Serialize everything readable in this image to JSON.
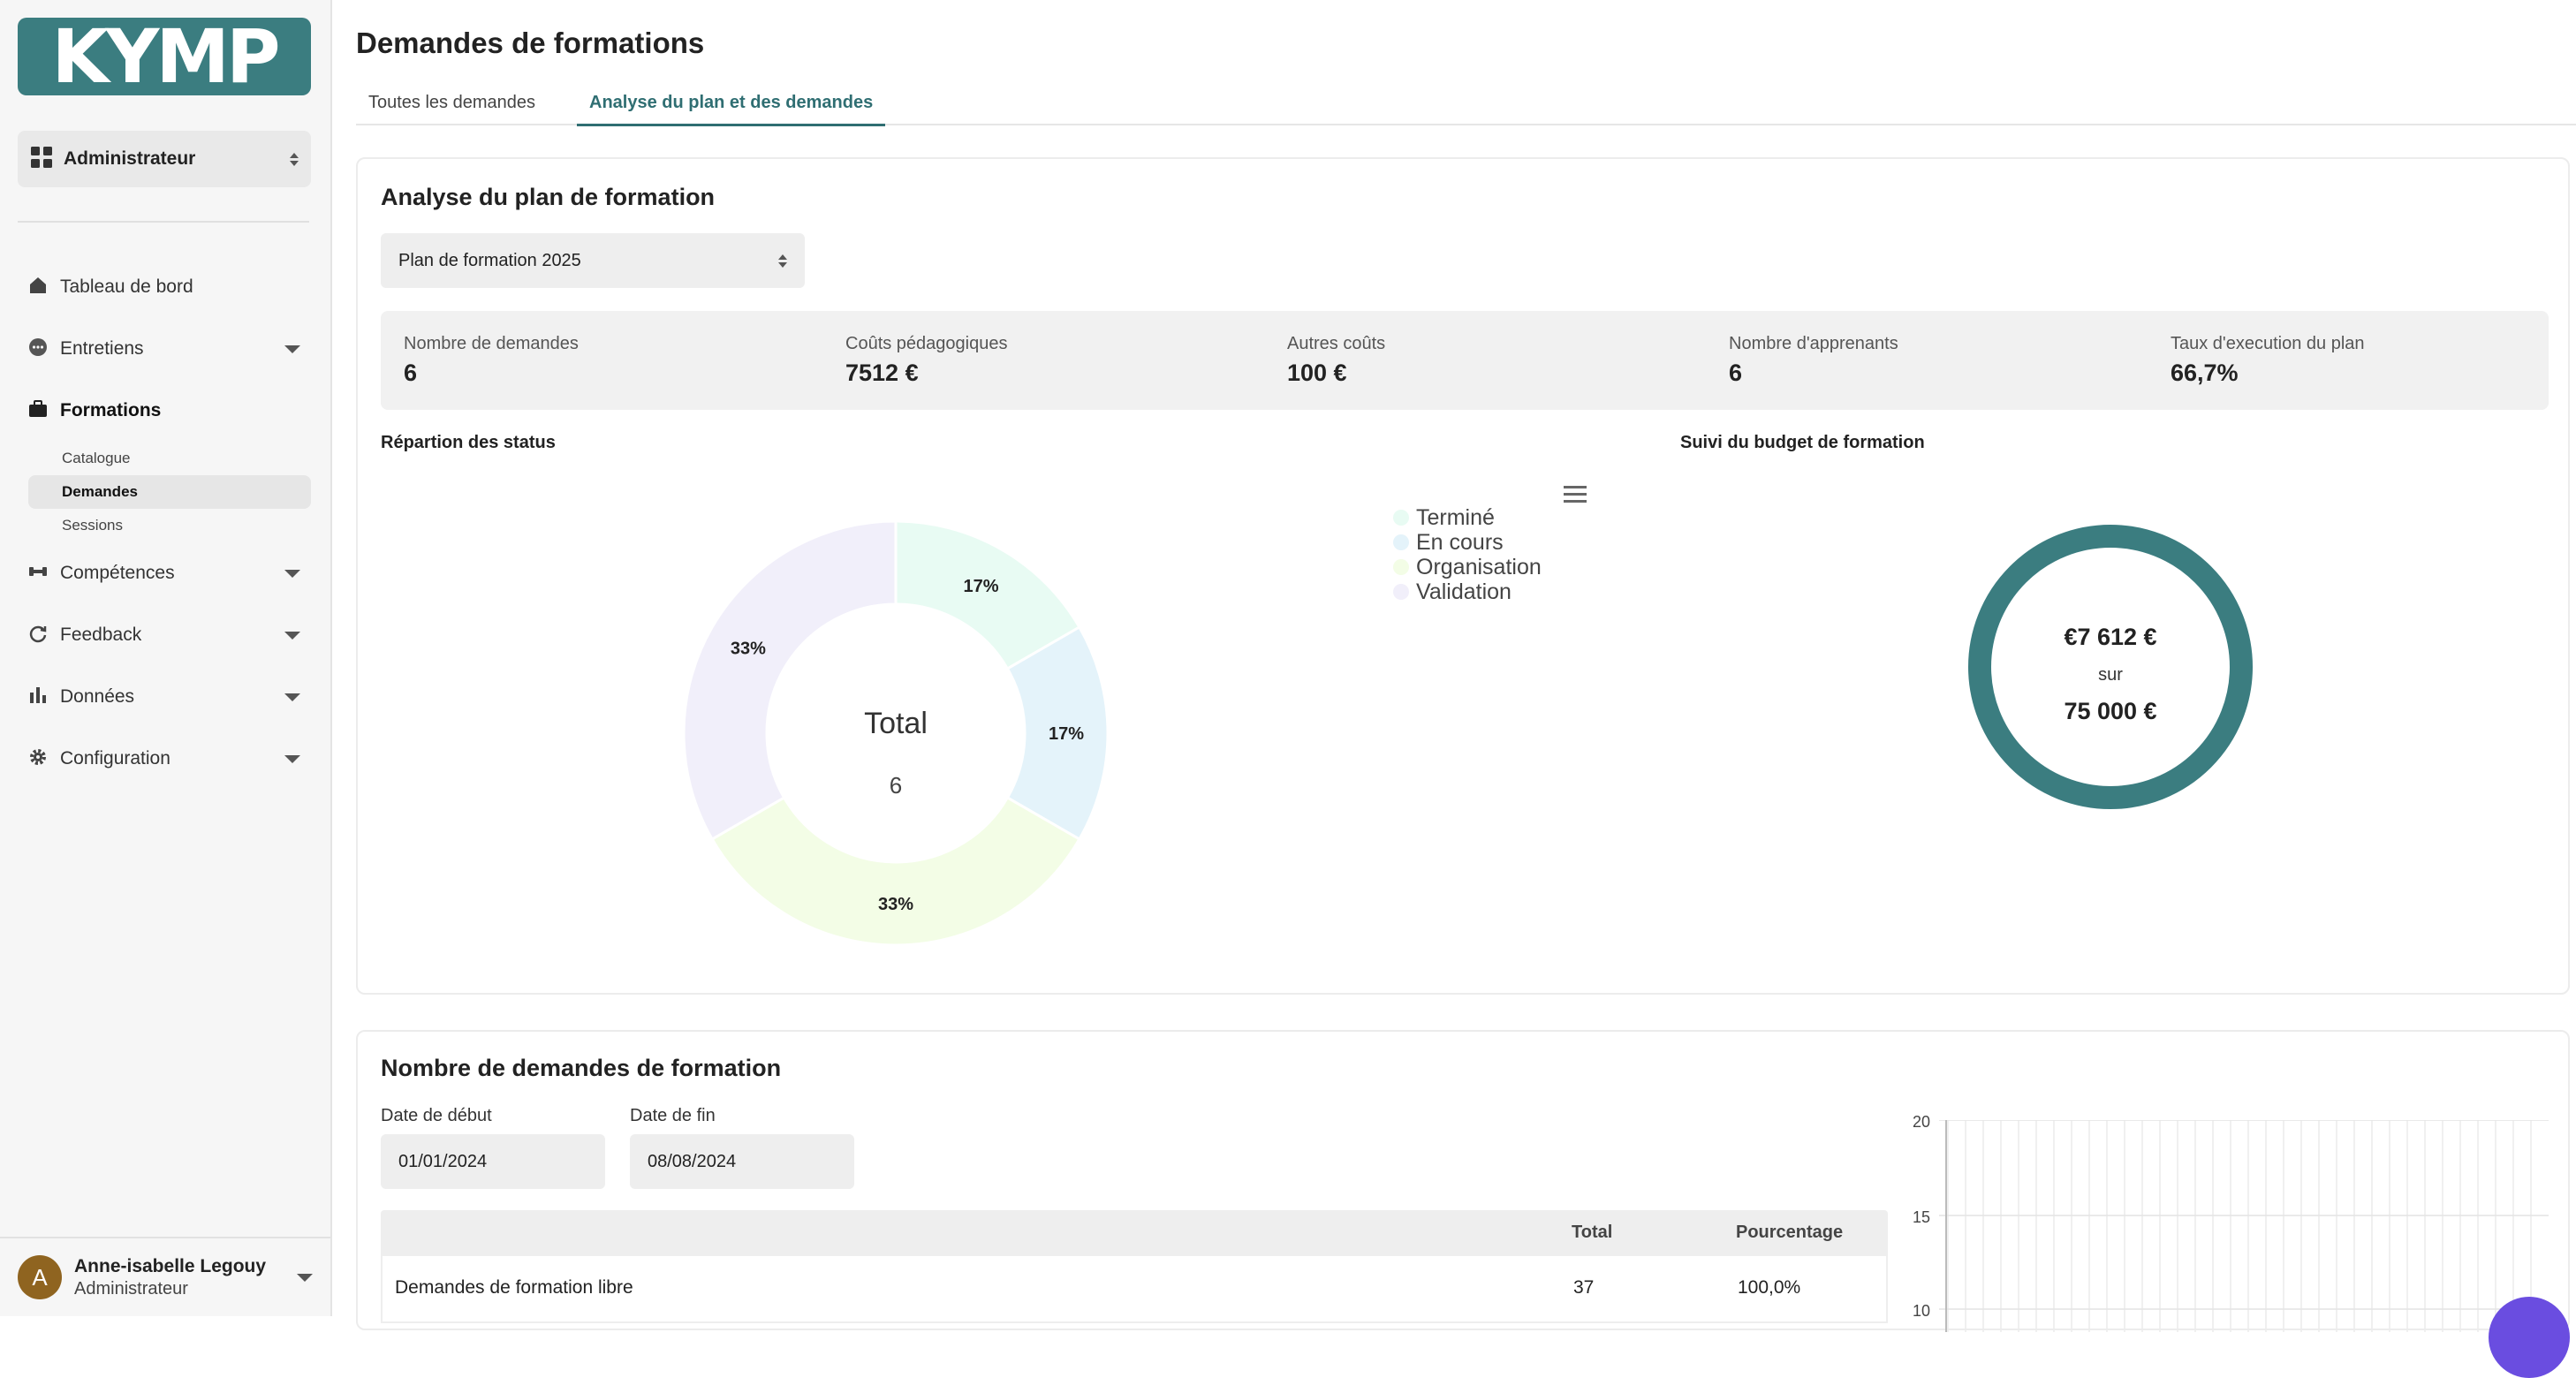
{
  "sidebar": {
    "logo_text": "KYMP",
    "role": {
      "label": "Administrateur",
      "icon": "grid-icon"
    },
    "nav": [
      {
        "label": "Tableau de bord",
        "icon": "home-icon"
      },
      {
        "label": "Entretiens",
        "icon": "chat-icon"
      },
      {
        "label": "Formations",
        "icon": "briefcase-icon",
        "active": true,
        "children": [
          {
            "label": "Catalogue"
          },
          {
            "label": "Demandes",
            "active": true
          },
          {
            "label": "Sessions"
          }
        ]
      },
      {
        "label": "Compétences",
        "icon": "dumbbell-icon"
      },
      {
        "label": "Feedback",
        "icon": "refresh-icon"
      },
      {
        "label": "Données",
        "icon": "bar-chart-icon"
      },
      {
        "label": "Configuration",
        "icon": "gear-icon"
      }
    ],
    "user": {
      "initial": "A",
      "name": "Anne-isabelle Legouy",
      "role": "Administrateur"
    }
  },
  "header": {
    "title": "Demandes de formations",
    "tabs": [
      {
        "label": "Toutes les demandes",
        "active": false
      },
      {
        "label": "Analyse du plan et des demandes",
        "active": true
      }
    ]
  },
  "analysis": {
    "title": "Analyse du plan de formation",
    "plan_select": "Plan de formation 2025",
    "stats": [
      {
        "label": "Nombre de demandes",
        "value": "6"
      },
      {
        "label": "Coûts pédagogiques",
        "value": "7512 €"
      },
      {
        "label": "Autres coûts",
        "value": "100 €"
      },
      {
        "label": "Nombre d'apprenants",
        "value": "6"
      },
      {
        "label": "Taux d'execution du plan",
        "value": "66,7%"
      }
    ],
    "status_title": "Répartion des status",
    "budget_title": "Suivi du budget de formation",
    "budget": {
      "spent": "€7 612 €",
      "sur": "sur",
      "total": "75 000 €",
      "color": "#3b7d80"
    },
    "donut_center": {
      "label": "Total",
      "value": "6"
    }
  },
  "chart_data": {
    "type": "pie",
    "title": "Répartion des status",
    "categories": [
      "Terminé",
      "En cours",
      "Organisation",
      "Validation"
    ],
    "values": [
      1,
      1,
      2,
      2
    ],
    "labels": [
      "17%",
      "17%",
      "33%",
      "33%"
    ],
    "colors": [
      "#e8fbf3",
      "#e4f3fa",
      "#f3fde6",
      "#f1effa"
    ],
    "legend": "top-right"
  },
  "requests": {
    "title": "Nombre de demandes de formation",
    "start_label": "Date de début",
    "start_value": "01/01/2024",
    "end_label": "Date de fin",
    "end_value": "08/08/2024",
    "table": {
      "headers": [
        "",
        "Total",
        "Pourcentage"
      ],
      "rows": [
        {
          "name": "Demandes de formation libre",
          "total": "37",
          "pct": "100,0%"
        }
      ]
    },
    "y_ticks": [
      "20",
      "15",
      "10"
    ]
  }
}
